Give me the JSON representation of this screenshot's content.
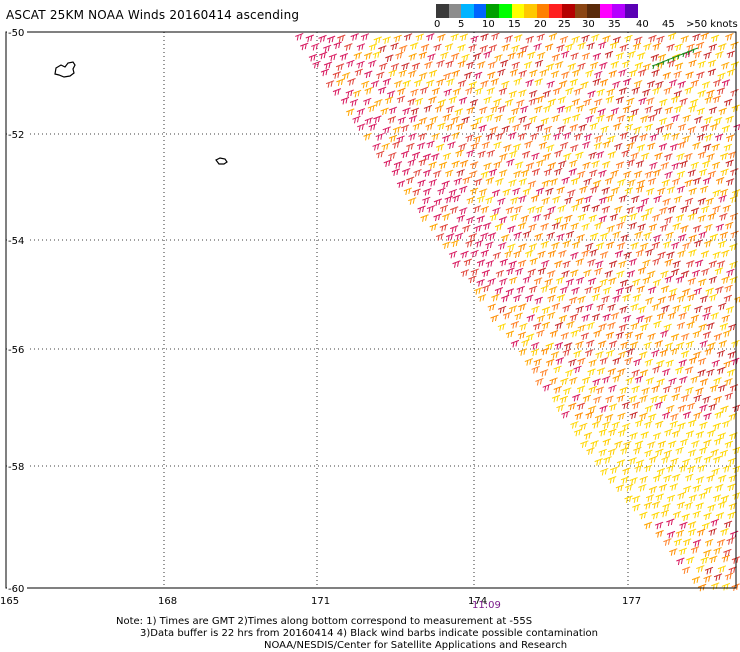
{
  "title": "ASCAT 25KM NOAA Winds 20160414 ascending",
  "colorbar": {
    "colors": [
      "#3a3a3a",
      "#8c8c8c",
      "#00b4ff",
      "#0064ff",
      "#00a000",
      "#00ff00",
      "#ffff00",
      "#ffc800",
      "#ff8000",
      "#ff2020",
      "#b40000",
      "#8b4513",
      "#5a2a0a",
      "#ff00ff",
      "#b400ff",
      "#5a00b4"
    ],
    "labels": [
      "0",
      "5",
      "10",
      "15",
      "20",
      "25",
      "30",
      "35",
      "40",
      "45",
      ">50 knots"
    ]
  },
  "lat_labels": [
    "-50",
    "-52",
    "-54",
    "-56",
    "-58",
    "-60"
  ],
  "lon_labels": [
    "165",
    "168",
    "171",
    "174",
    "177"
  ],
  "time_label": "11:09",
  "notes": [
    "Note: 1) Times are GMT 2)Times along bottom correspond to measurement at -55S",
    "3)Data buffer is 22 hrs from 20160414 4) Black wind barbs indicate possible contamination",
    "NOAA/NESDIS/Center for Satellite Applications and Research"
  ],
  "barb_colors": [
    "#ffd700",
    "#ffa500",
    "#ff7f24",
    "#e0443a",
    "#d81b60",
    "#c62828",
    "#ff8c00",
    "#ffcc00"
  ]
}
